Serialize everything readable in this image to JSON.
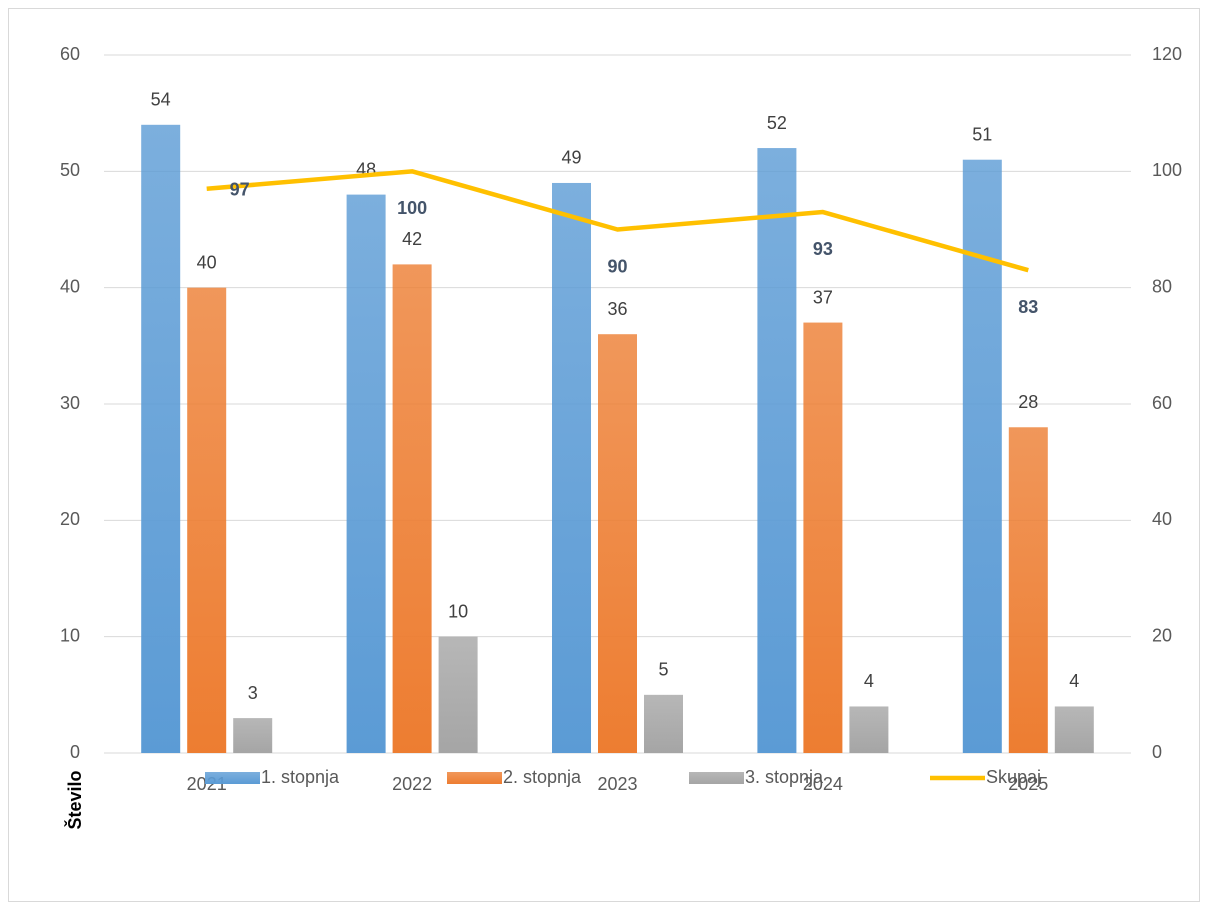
{
  "chart_data": {
    "type": "bar",
    "y_label": "Število",
    "categories": [
      "2021",
      "2022",
      "2023",
      "2024",
      "2025"
    ],
    "series": [
      {
        "name": "1. stopnja",
        "color": "#5b9bd5",
        "values": [
          54,
          48,
          49,
          52,
          51
        ]
      },
      {
        "name": "2. stopnja",
        "color": "#ed7d31",
        "values": [
          40,
          42,
          36,
          37,
          28
        ]
      },
      {
        "name": "3. stopnja",
        "color": "#a5a5a5",
        "values": [
          3,
          10,
          5,
          4,
          4
        ]
      },
      {
        "name": "Skupaj",
        "color": "#ffc000",
        "type": "line",
        "axis": "y2",
        "values": [
          97,
          100,
          90,
          93,
          83
        ]
      }
    ],
    "ylim": [
      0,
      60
    ],
    "yticks": [
      0,
      10,
      20,
      30,
      40,
      50,
      60
    ],
    "y2lim": [
      0,
      120
    ],
    "y2ticks": [
      0,
      20,
      40,
      60,
      80,
      100,
      120
    ],
    "grid": true,
    "legend": "bottom"
  }
}
